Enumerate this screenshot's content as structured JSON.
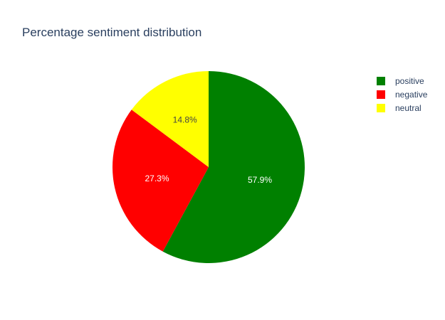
{
  "chart_data": {
    "type": "pie",
    "title": "Percentage sentiment distribution",
    "categories": [
      "positive",
      "negative",
      "neutral"
    ],
    "values": [
      57.9,
      27.3,
      14.8
    ],
    "labels": [
      "57.9%",
      "27.3%",
      "14.8%"
    ],
    "colors": [
      "#008000",
      "#ff0000",
      "#ffff00"
    ],
    "label_colors": [
      "#ffffff",
      "#ffffff",
      "#444444"
    ],
    "legend_placement": "top-right"
  }
}
